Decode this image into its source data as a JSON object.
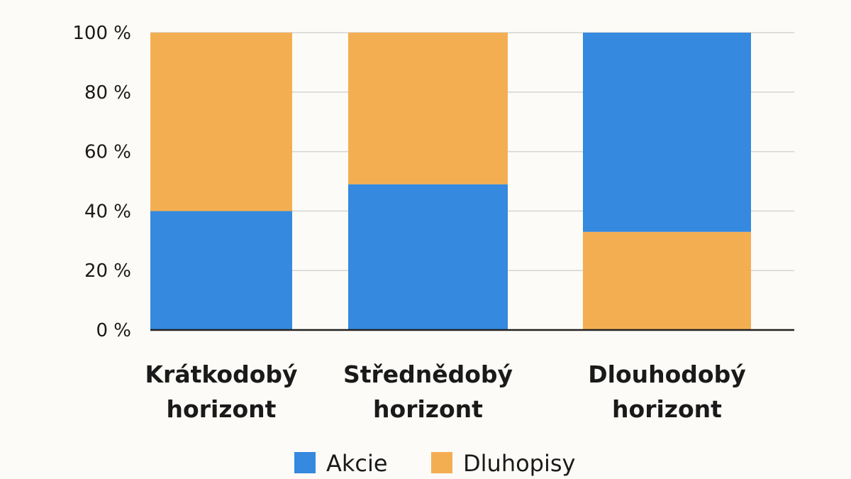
{
  "chart_data": {
    "type": "bar",
    "stacked": true,
    "categories": [
      [
        "Krátkodobý",
        "horizont"
      ],
      [
        "Střednědobý",
        "horizont"
      ],
      [
        "Dlouhodobý",
        "horizont"
      ]
    ],
    "series": [
      {
        "name": "Akcie",
        "color": "#3589de",
        "values": [
          40,
          49,
          67
        ],
        "stack_order": [
          0,
          0,
          1
        ]
      },
      {
        "name": "Dluhopisy",
        "color": "#f4ae52",
        "values": [
          60,
          51,
          33
        ],
        "stack_order": [
          1,
          1,
          0
        ]
      }
    ],
    "yticks": [
      "0 %",
      "20 %",
      "40 %",
      "60 %",
      "80 %",
      "100 %"
    ],
    "ytick_values": [
      0,
      20,
      40,
      60,
      80,
      100
    ],
    "ylim": [
      0,
      100
    ],
    "grid": true,
    "legend_position": "bottom-center",
    "title": "",
    "xlabel": "",
    "ylabel": ""
  }
}
